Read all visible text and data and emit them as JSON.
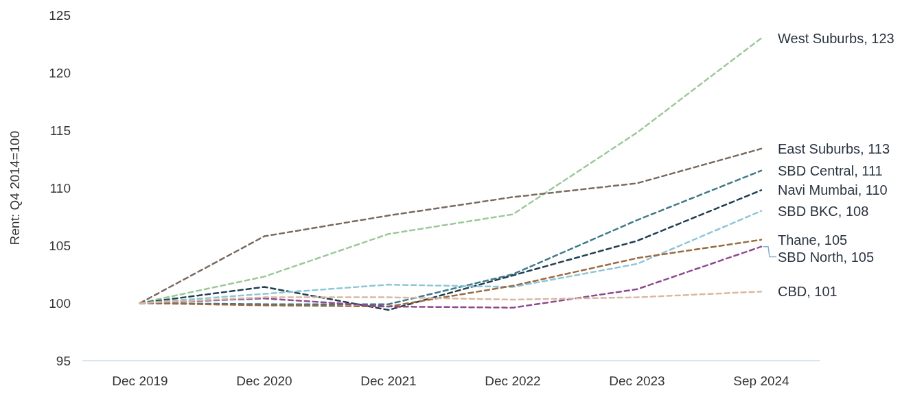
{
  "chart_data": {
    "type": "line",
    "ylabel": "Rent: Q4 2014=100",
    "categories": [
      "Dec 2019",
      "Dec 2020",
      "Dec 2021",
      "Dec 2022",
      "Dec 2023",
      "Sep 2024"
    ],
    "ylim": [
      95,
      125
    ],
    "yticks": [
      95,
      100,
      105,
      110,
      115,
      120,
      125
    ],
    "grid": false,
    "line_style": "dashed",
    "marker": "none",
    "series": [
      {
        "color": "#9dc89a",
        "values": [
          100,
          102.3,
          106,
          107.7,
          114.8,
          123
        ],
        "value_labels": [
          null,
          null,
          null,
          null,
          null,
          "West Suburbs, 123"
        ]
      },
      {
        "color": "#7a6a60",
        "values": [
          100,
          105.8,
          107.6,
          109.2,
          110.4,
          113.4
        ],
        "value_labels": [
          null,
          null,
          null,
          null,
          null,
          "East Suburbs, 113"
        ]
      },
      {
        "color": "#3f7a8a",
        "values": [
          100,
          99.9,
          99.9,
          102.5,
          107.2,
          111.5
        ],
        "value_labels": [
          null,
          null,
          null,
          null,
          null,
          "SBD Central, 111"
        ]
      },
      {
        "color": "#1f4050",
        "values": [
          100,
          101.4,
          99.4,
          102.4,
          105.4,
          109.8
        ],
        "value_labels": [
          null,
          null,
          null,
          null,
          null,
          "Navi Mumbai, 110"
        ]
      },
      {
        "color": "#8ec6d8",
        "values": [
          100,
          100.8,
          101.6,
          101.4,
          103.4,
          108
        ],
        "value_labels": [
          null,
          null,
          null,
          null,
          null,
          "SBD BKC, 108"
        ]
      },
      {
        "color": "#9a6a40",
        "values": [
          100,
          99.8,
          99.7,
          101.5,
          103.9,
          105.5
        ],
        "value_labels": [
          null,
          null,
          null,
          null,
          null,
          "Thane, 105"
        ]
      },
      {
        "color": "#8e4a8e",
        "values": [
          100,
          100.4,
          99.7,
          99.6,
          101.2,
          104.9
        ],
        "value_labels": [
          null,
          null,
          null,
          null,
          null,
          "SBD North, 105"
        ]
      },
      {
        "color": "#d8b8a0",
        "values": [
          100,
          100.5,
          100.5,
          100.3,
          100.5,
          101
        ],
        "value_labels": [
          null,
          null,
          null,
          null,
          null,
          "CBD, 101"
        ]
      }
    ]
  }
}
